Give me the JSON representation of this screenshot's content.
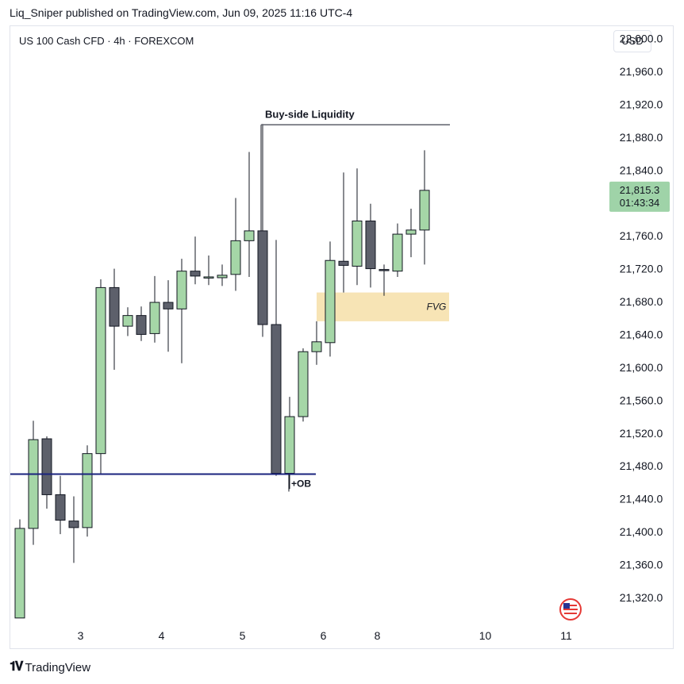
{
  "header": {
    "text": "Liq_Sniper published on TradingView.com, Jun 09, 2025 11:16 UTC-4"
  },
  "symbol": {
    "text": "US 100 Cash CFD · 4h · FOREXCOM"
  },
  "currency_button": {
    "label": "USD"
  },
  "footer": {
    "brand": "TradingView"
  },
  "price_tag": {
    "price": "21,815.3",
    "countdown": "01:43:34",
    "color": "#9fd3a8"
  },
  "annotations": {
    "liquidity": "Buy-side Liquidity",
    "fvg": "FVG",
    "ob": "+OB"
  },
  "colors": {
    "up_fill": "#a5d6a7",
    "down_fill": "#5d606b",
    "wick": "#131722",
    "ob_line": "#1a237e",
    "fvg_zone": "#f7e4b5",
    "liquidity_line": "#5d606b"
  },
  "chart_data": {
    "type": "candlestick",
    "timeframe": "4h",
    "x_tick_labels": [
      "3",
      "4",
      "5",
      "6",
      "8",
      "10",
      "11"
    ],
    "x_tick_candle_index": [
      4.5,
      10.5,
      16.5,
      22.5,
      26.5,
      34.5,
      40.5
    ],
    "ylim": [
      21290,
      22015
    ],
    "yticks": [
      22000,
      21960,
      21920,
      21880,
      21840,
      21800,
      21760,
      21720,
      21680,
      21640,
      21600,
      21560,
      21520,
      21480,
      21440,
      21400,
      21360,
      21320
    ],
    "ytick_labels": [
      "22,000.0",
      "21,960.0",
      "21,920.0",
      "21,880.0",
      "21,840.0",
      "21,800.0",
      "21,760.0",
      "21,720.0",
      "21,680.0",
      "21,640.0",
      "21,600.0",
      "21,560.0",
      "21,520.0",
      "21,480.0",
      "21,440.0",
      "21,400.0",
      "21,360.0",
      "21,320.0"
    ],
    "candles": [
      {
        "o": 21295,
        "h": 21415,
        "l": 21295,
        "c": 21404
      },
      {
        "o": 21404,
        "h": 21535,
        "l": 21384,
        "c": 21512
      },
      {
        "o": 21513,
        "h": 21516,
        "l": 21428,
        "c": 21445
      },
      {
        "o": 21445,
        "h": 21468,
        "l": 21397,
        "c": 21414
      },
      {
        "o": 21413,
        "h": 21443,
        "l": 21362,
        "c": 21405
      },
      {
        "o": 21405,
        "h": 21505,
        "l": 21394,
        "c": 21495
      },
      {
        "o": 21495,
        "h": 21707,
        "l": 21471,
        "c": 21697
      },
      {
        "o": 21697,
        "h": 21720,
        "l": 21597,
        "c": 21650
      },
      {
        "o": 21650,
        "h": 21673,
        "l": 21638,
        "c": 21663
      },
      {
        "o": 21663,
        "h": 21674,
        "l": 21632,
        "c": 21640
      },
      {
        "o": 21641,
        "h": 21711,
        "l": 21630,
        "c": 21679
      },
      {
        "o": 21679,
        "h": 21706,
        "l": 21619,
        "c": 21671
      },
      {
        "o": 21671,
        "h": 21732,
        "l": 21605,
        "c": 21717
      },
      {
        "o": 21717,
        "h": 21759,
        "l": 21701,
        "c": 21711
      },
      {
        "o": 21710,
        "h": 21736,
        "l": 21700,
        "c": 21710
      },
      {
        "o": 21709,
        "h": 21725,
        "l": 21699,
        "c": 21712
      },
      {
        "o": 21713,
        "h": 21806,
        "l": 21693,
        "c": 21754
      },
      {
        "o": 21754,
        "h": 21862,
        "l": 21710,
        "c": 21766
      },
      {
        "o": 21766,
        "h": 21896,
        "l": 21637,
        "c": 21652
      },
      {
        "o": 21652,
        "h": 21755,
        "l": 21468,
        "c": 21471
      },
      {
        "o": 21471,
        "h": 21564,
        "l": 21452,
        "c": 21540
      },
      {
        "o": 21540,
        "h": 21623,
        "l": 21534,
        "c": 21619
      },
      {
        "o": 21619,
        "h": 21656,
        "l": 21603,
        "c": 21631
      },
      {
        "o": 21630,
        "h": 21753,
        "l": 21613,
        "c": 21730
      },
      {
        "o": 21729,
        "h": 21837,
        "l": 21691,
        "c": 21724
      },
      {
        "o": 21723,
        "h": 21842,
        "l": 21700,
        "c": 21778
      },
      {
        "o": 21778,
        "h": 21799,
        "l": 21697,
        "c": 21720
      },
      {
        "o": 21719,
        "h": 21725,
        "l": 21687,
        "c": 21718
      },
      {
        "o": 21717,
        "h": 21775,
        "l": 21710,
        "c": 21762
      },
      {
        "o": 21762,
        "h": 21793,
        "l": 21734,
        "c": 21767
      },
      {
        "o": 21767,
        "h": 21864,
        "l": 21725,
        "c": 21815.3
      }
    ],
    "levels": {
      "ob_price": 21470,
      "liquidity_price": 21895,
      "fvg_low": 21656,
      "fvg_high": 21691
    }
  }
}
